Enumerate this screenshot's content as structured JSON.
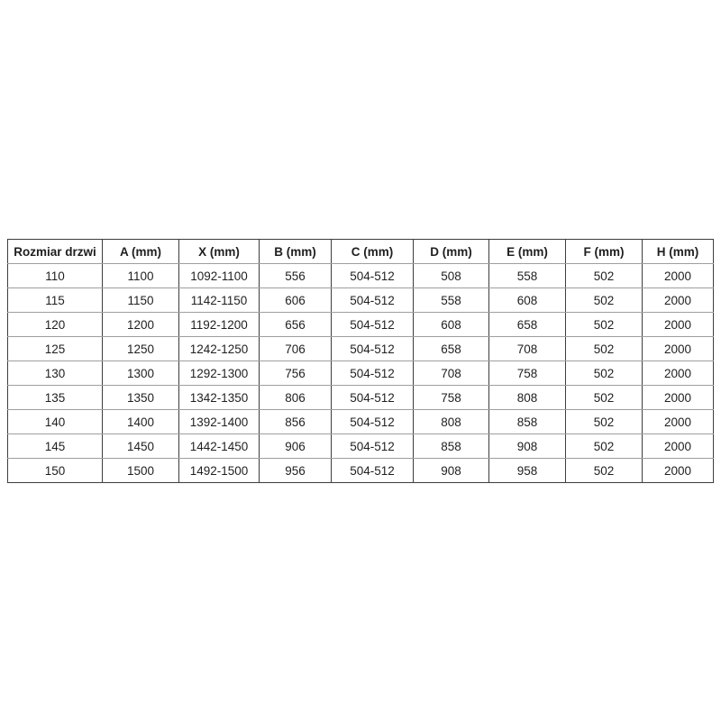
{
  "table": {
    "headers": [
      "Rozmiar drzwi",
      "A (mm)",
      "X (mm)",
      "B (mm)",
      "C (mm)",
      "D (mm)",
      "E (mm)",
      "F (mm)",
      "H (mm)"
    ],
    "rows": [
      [
        "110",
        "1100",
        "1092-1100",
        "556",
        "504-512",
        "508",
        "558",
        "502",
        "2000"
      ],
      [
        "115",
        "1150",
        "1142-1150",
        "606",
        "504-512",
        "558",
        "608",
        "502",
        "2000"
      ],
      [
        "120",
        "1200",
        "1192-1200",
        "656",
        "504-512",
        "608",
        "658",
        "502",
        "2000"
      ],
      [
        "125",
        "1250",
        "1242-1250",
        "706",
        "504-512",
        "658",
        "708",
        "502",
        "2000"
      ],
      [
        "130",
        "1300",
        "1292-1300",
        "756",
        "504-512",
        "708",
        "758",
        "502",
        "2000"
      ],
      [
        "135",
        "1350",
        "1342-1350",
        "806",
        "504-512",
        "758",
        "808",
        "502",
        "2000"
      ],
      [
        "140",
        "1400",
        "1392-1400",
        "856",
        "504-512",
        "808",
        "858",
        "502",
        "2000"
      ],
      [
        "145",
        "1450",
        "1442-1450",
        "906",
        "504-512",
        "858",
        "908",
        "502",
        "2000"
      ],
      [
        "150",
        "1500",
        "1492-1500",
        "956",
        "504-512",
        "908",
        "958",
        "502",
        "2000"
      ]
    ]
  },
  "colors": {
    "border_dark": "#3d3d3d",
    "border_light": "#9e9e9e",
    "text": "#1f1f1f",
    "background": "#ffffff"
  }
}
